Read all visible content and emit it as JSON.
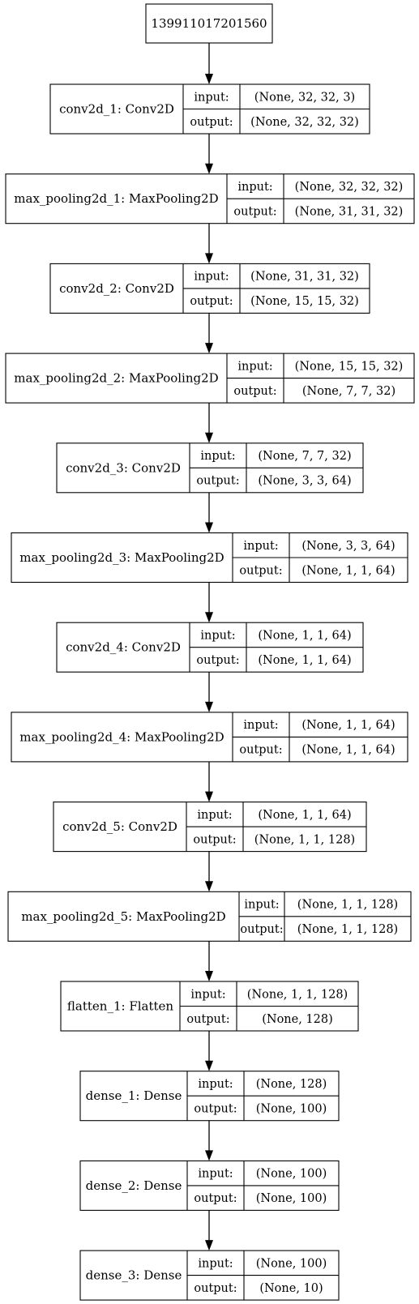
{
  "root": {
    "label": "139911017201560"
  },
  "nodes": [
    {
      "name": "conv2d_1: Conv2D",
      "input_label": "input:",
      "input": "(None, 32, 32, 3)",
      "output_label": "output:",
      "output": "(None, 32, 32, 32)"
    },
    {
      "name": "max_pooling2d_1: MaxPooling2D",
      "input_label": "input:",
      "input": "(None, 32, 32, 32)",
      "output_label": "output:",
      "output": "(None, 31, 31, 32)"
    },
    {
      "name": "conv2d_2: Conv2D",
      "input_label": "input:",
      "input": "(None, 31, 31, 32)",
      "output_label": "output:",
      "output": "(None, 15, 15, 32)"
    },
    {
      "name": "max_pooling2d_2: MaxPooling2D",
      "input_label": "input:",
      "input": "(None, 15, 15, 32)",
      "output_label": "output:",
      "output": "(None, 7, 7, 32)"
    },
    {
      "name": "conv2d_3: Conv2D",
      "input_label": "input:",
      "input": "(None, 7, 7, 32)",
      "output_label": "output:",
      "output": "(None, 3, 3, 64)"
    },
    {
      "name": "max_pooling2d_3: MaxPooling2D",
      "input_label": "input:",
      "input": "(None, 3, 3, 64)",
      "output_label": "output:",
      "output": "(None, 1, 1, 64)"
    },
    {
      "name": "conv2d_4: Conv2D",
      "input_label": "input:",
      "input": "(None, 1, 1, 64)",
      "output_label": "output:",
      "output": "(None, 1, 1, 64)"
    },
    {
      "name": "max_pooling2d_4: MaxPooling2D",
      "input_label": "input:",
      "input": "(None, 1, 1, 64)",
      "output_label": "output:",
      "output": "(None, 1, 1, 64)"
    },
    {
      "name": "conv2d_5: Conv2D",
      "input_label": "input:",
      "input": "(None, 1, 1, 64)",
      "output_label": "output:",
      "output": "(None, 1, 1, 128)"
    },
    {
      "name": "max_pooling2d_5: MaxPooling2D",
      "input_label": "input:",
      "input": "(None, 1, 1, 128)",
      "output_label": "output:",
      "output": "(None, 1, 1, 128)"
    },
    {
      "name": "flatten_1: Flatten",
      "input_label": "input:",
      "input": "(None, 1, 1, 128)",
      "output_label": "output:",
      "output": "(None, 128)"
    },
    {
      "name": "dense_1: Dense",
      "input_label": "input:",
      "input": "(None, 128)",
      "output_label": "output:",
      "output": "(None, 100)"
    },
    {
      "name": "dense_2: Dense",
      "input_label": "input:",
      "input": "(None, 100)",
      "output_label": "output:",
      "output": "(None, 100)"
    },
    {
      "name": "dense_3: Dense",
      "input_label": "input:",
      "input": "(None, 100)",
      "output_label": "output:",
      "output": "(None, 10)"
    }
  ]
}
